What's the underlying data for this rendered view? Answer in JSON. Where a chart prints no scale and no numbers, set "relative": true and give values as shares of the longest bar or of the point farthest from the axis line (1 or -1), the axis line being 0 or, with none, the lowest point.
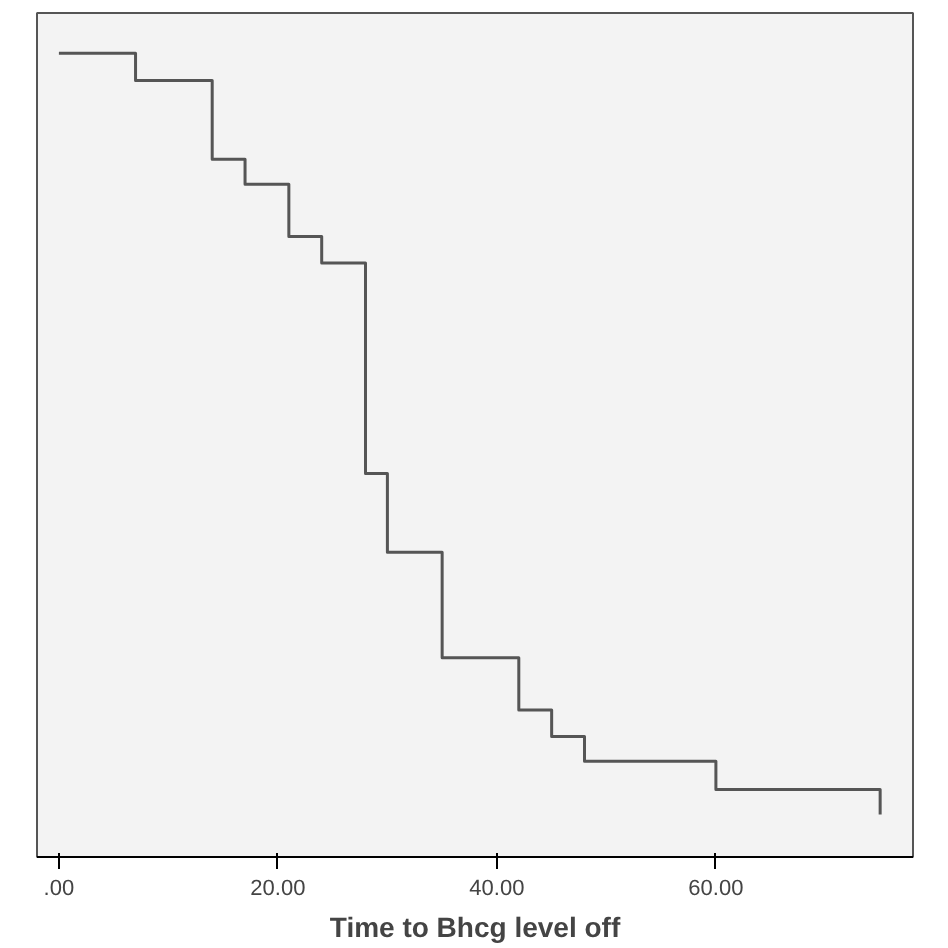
{
  "chart_data": {
    "type": "step",
    "relative": true,
    "xlabel": "Time to Bhcg level off",
    "x": [
      0,
      7,
      14,
      17,
      21,
      24,
      28,
      30,
      35,
      42,
      45,
      48,
      60,
      75
    ],
    "series": [
      {
        "color": "#555555",
        "values": [
          1.0,
          0.966,
          0.868,
          0.837,
          0.772,
          0.739,
          0.477,
          0.379,
          0.248,
          0.183,
          0.15,
          0.119,
          0.084,
          0.053
        ]
      }
    ],
    "xlim": [
      -2,
      78
    ],
    "xticks": [
      {
        "value": 0,
        "label": ".00"
      },
      {
        "value": 20,
        "label": "20.00"
      },
      {
        "value": 40,
        "label": "40.00"
      },
      {
        "value": 60,
        "label": "60.00"
      }
    ],
    "grid": false,
    "marker": "none",
    "line_style": "solid"
  }
}
